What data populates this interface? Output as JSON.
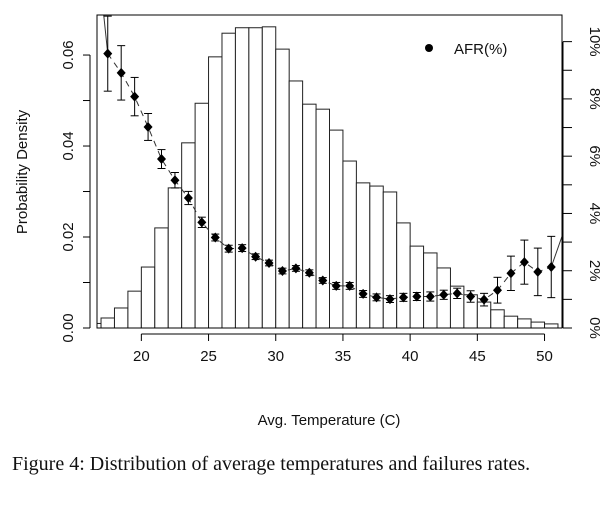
{
  "chart_data": {
    "type": "bar",
    "xlabel": "Avg. Temperature (C)",
    "ylabel": "Probability Density",
    "xlim": [
      16.7,
      51.3
    ],
    "ylim": [
      0,
      0.0688
    ],
    "y2lim": [
      0,
      10.93
    ],
    "x_ticks": [
      "20",
      "25",
      "30",
      "35",
      "40",
      "45",
      "50"
    ],
    "y_ticks": [
      "0.00",
      "0.02",
      "0.04",
      "0.06"
    ],
    "y2_ticks": [
      "0%",
      "2%",
      "4%",
      "6%",
      "8%",
      "10%"
    ],
    "legend": {
      "label": "AFR(%)",
      "position": "top-right"
    },
    "histogram": {
      "bin_start": 16,
      "bin_width": 1,
      "density": [
        0.001,
        0.0022,
        0.0044,
        0.0081,
        0.0134,
        0.022,
        0.0308,
        0.0407,
        0.0494,
        0.0596,
        0.0648,
        0.066,
        0.066,
        0.0662,
        0.0613,
        0.0543,
        0.0492,
        0.0481,
        0.0435,
        0.0367,
        0.0319,
        0.0312,
        0.0299,
        0.0231,
        0.018,
        0.0165,
        0.0132,
        0.0092,
        0.0073,
        0.0057,
        0.004,
        0.0026,
        0.002,
        0.0013,
        0.0009
      ]
    },
    "series": [
      {
        "name": "AFR(%)",
        "axis": "right",
        "x": [
          17.5,
          18.5,
          19.5,
          20.5,
          21.5,
          22.5,
          23.5,
          24.5,
          25.5,
          26.5,
          27.5,
          28.5,
          29.5,
          30.5,
          31.5,
          32.5,
          33.5,
          34.5,
          35.5,
          36.5,
          37.5,
          38.5,
          39.5,
          40.5,
          41.5,
          42.5,
          43.5,
          44.5,
          45.5,
          46.5,
          47.5,
          48.5,
          49.5,
          50.5
        ],
        "values": [
          9.58,
          8.91,
          8.08,
          7.02,
          5.9,
          5.16,
          4.54,
          3.69,
          3.16,
          2.77,
          2.79,
          2.49,
          2.27,
          1.99,
          2.08,
          1.93,
          1.66,
          1.47,
          1.47,
          1.19,
          1.07,
          1.01,
          1.07,
          1.1,
          1.1,
          1.16,
          1.21,
          1.1,
          0.99,
          1.32,
          1.91,
          2.3,
          1.96,
          2.13
        ],
        "error": [
          1.31,
          0.95,
          0.67,
          0.47,
          0.33,
          0.27,
          0.23,
          0.18,
          0.12,
          0.12,
          0.12,
          0.1,
          0.1,
          0.1,
          0.1,
          0.1,
          0.1,
          0.12,
          0.12,
          0.12,
          0.12,
          0.12,
          0.14,
          0.14,
          0.16,
          0.16,
          0.18,
          0.2,
          0.22,
          0.45,
          0.6,
          0.77,
          0.83,
          1.07
        ]
      }
    ]
  },
  "caption": "Figure 4:  Distribution of average temperatures and failures rates."
}
